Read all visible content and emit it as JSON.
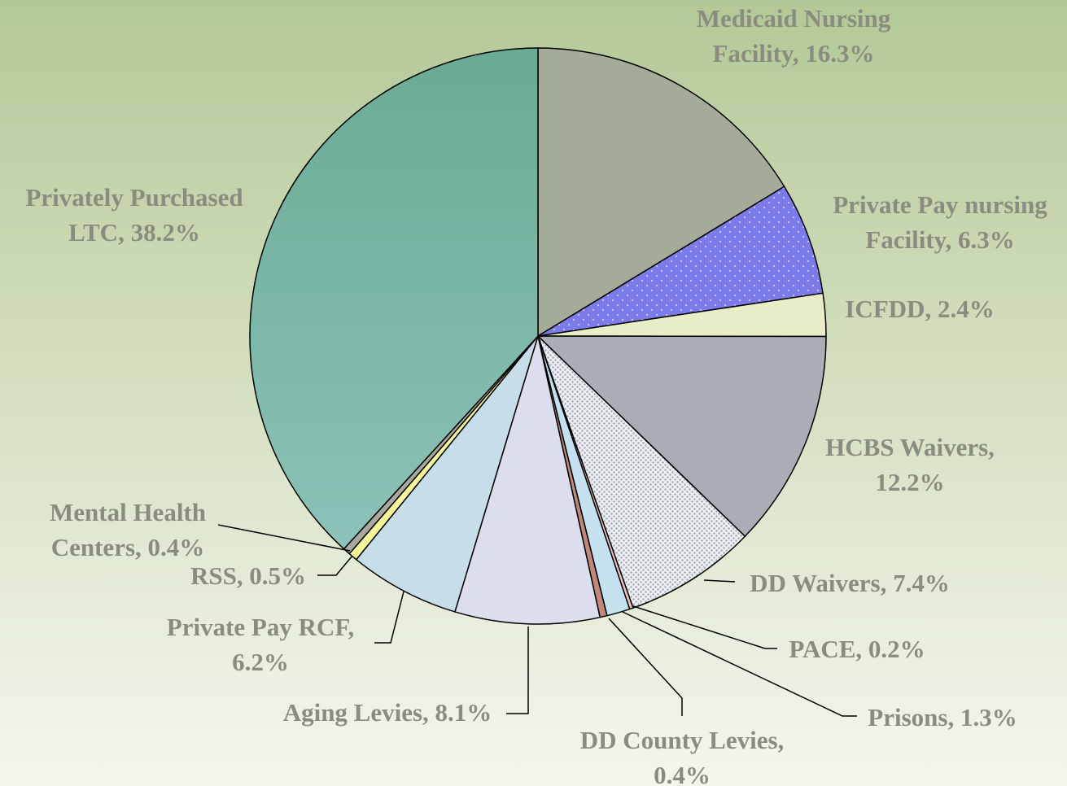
{
  "chart_data": {
    "type": "pie",
    "categories": [
      "Medicaid Nursing\nFacility, 16.3%",
      "Private Pay nursing\nFacility, 6.3%",
      "ICFDD, 2.4%",
      "HCBS Waivers,\n12.2%",
      "DD Waivers, 7.4%",
      "PACE, 0.2%",
      "Prisons, 1.3%",
      "DD County Levies,\n0.4%",
      "Aging Levies, 8.1%",
      "Private Pay RCF,\n6.2%",
      "RSS, 0.5%",
      "Mental Health\nCenters, 0.4%",
      "Privately Purchased\nLTC, 38.2%"
    ],
    "values": [
      16.3,
      6.3,
      2.4,
      12.2,
      7.4,
      0.2,
      1.3,
      0.4,
      8.1,
      6.2,
      0.5,
      0.4,
      38.2
    ],
    "colors": [
      "#a4ab98",
      "#7b7bea",
      "#e8edc8",
      "#a9adb6",
      "#dfe3ea",
      "#f0c0c0",
      "#c5e0ee",
      "#c0887a",
      "#dcdeed",
      "#c7deea",
      "#f5f59a",
      "#a9a9a0",
      "#7bb5a4"
    ]
  }
}
